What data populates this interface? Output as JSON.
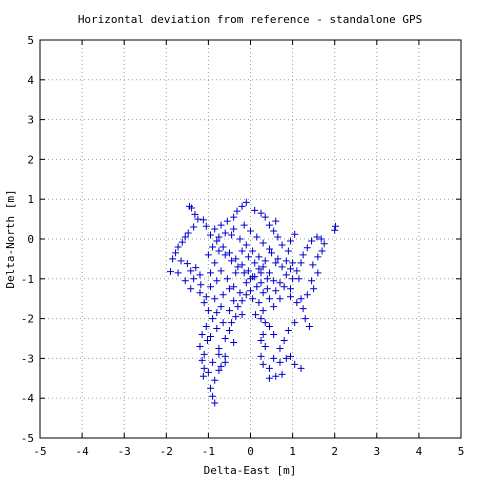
{
  "chart_data": {
    "type": "scatter",
    "title": "Horizontal deviation from reference - standalone GPS",
    "xlabel": "Delta-East [m]",
    "ylabel": "Delta-North [m]",
    "xlim": [
      -5,
      5
    ],
    "ylim": [
      -5,
      5
    ],
    "x_ticks": [
      "-5",
      "-4",
      "-3",
      "-2",
      "-1",
      "0",
      "1",
      "2",
      "3",
      "4",
      "5"
    ],
    "y_ticks": [
      "-5",
      "-4",
      "-3",
      "-2",
      "-1",
      "0",
      "1",
      "2",
      "3",
      "4",
      "5"
    ],
    "grid": true,
    "marker": "plus",
    "series": [
      {
        "color": "#0000cc",
        "points": [
          [
            -1.45,
            0.82
          ],
          [
            -1.4,
            0.78
          ],
          [
            -1.32,
            0.62
          ],
          [
            -1.25,
            0.5
          ],
          [
            -1.12,
            0.48
          ],
          [
            -1.05,
            0.32
          ],
          [
            -1.35,
            0.3
          ],
          [
            -1.48,
            0.15
          ],
          [
            -1.55,
            0.05
          ],
          [
            -1.62,
            -0.08
          ],
          [
            -1.72,
            -0.2
          ],
          [
            -1.78,
            -0.35
          ],
          [
            -1.85,
            -0.5
          ],
          [
            -1.65,
            -0.55
          ],
          [
            -1.5,
            -0.62
          ],
          [
            -1.42,
            -0.8
          ],
          [
            -1.3,
            -0.72
          ],
          [
            -1.2,
            -0.9
          ],
          [
            -1.72,
            -0.85
          ],
          [
            -1.9,
            -0.82
          ],
          [
            -1.55,
            -1.05
          ],
          [
            -1.35,
            -1.0
          ],
          [
            -1.18,
            -1.15
          ],
          [
            -1.42,
            -1.25
          ],
          [
            -1.2,
            -1.35
          ],
          [
            -1.05,
            -1.45
          ],
          [
            -0.95,
            -1.2
          ],
          [
            -1.1,
            -1.6
          ],
          [
            -1.0,
            -1.8
          ],
          [
            -0.9,
            -2.0
          ],
          [
            -1.05,
            -2.2
          ],
          [
            -1.15,
            -2.4
          ],
          [
            -1.02,
            -2.55
          ],
          [
            -1.2,
            -2.7
          ],
          [
            -1.1,
            -2.9
          ],
          [
            -1.15,
            -3.05
          ],
          [
            -1.1,
            -3.25
          ],
          [
            -1.12,
            -3.45
          ],
          [
            -1.0,
            -3.35
          ],
          [
            -0.9,
            -3.1
          ],
          [
            -0.85,
            -3.55
          ],
          [
            -0.95,
            -3.75
          ],
          [
            -0.9,
            -3.95
          ],
          [
            -0.85,
            -4.12
          ],
          [
            -0.75,
            -3.3
          ],
          [
            -0.7,
            -3.2
          ],
          [
            -0.6,
            -2.95
          ],
          [
            -0.75,
            -2.75
          ],
          [
            -0.6,
            -2.5
          ],
          [
            -0.5,
            -2.3
          ],
          [
            -0.65,
            -2.1
          ],
          [
            -0.8,
            -2.25
          ],
          [
            -0.45,
            -2.1
          ],
          [
            -0.35,
            -1.95
          ],
          [
            -0.5,
            -1.8
          ],
          [
            -0.7,
            -1.7
          ],
          [
            -0.3,
            -1.7
          ],
          [
            -0.2,
            -1.55
          ],
          [
            -0.1,
            -1.4
          ],
          [
            0.05,
            -1.5
          ],
          [
            0.2,
            -1.6
          ],
          [
            0.3,
            -1.8
          ],
          [
            0.12,
            -1.9
          ],
          [
            0.25,
            -2.0
          ],
          [
            0.35,
            -2.1
          ],
          [
            0.45,
            -2.2
          ],
          [
            0.55,
            -2.4
          ],
          [
            0.3,
            -2.4
          ],
          [
            0.25,
            -2.55
          ],
          [
            0.35,
            -2.7
          ],
          [
            0.25,
            -2.95
          ],
          [
            0.3,
            -3.15
          ],
          [
            0.45,
            -3.25
          ],
          [
            0.55,
            -3.0
          ],
          [
            0.7,
            -2.75
          ],
          [
            0.8,
            -2.55
          ],
          [
            0.7,
            -3.1
          ],
          [
            0.75,
            -3.4
          ],
          [
            0.6,
            -3.45
          ],
          [
            0.45,
            -3.5
          ],
          [
            0.85,
            -3.0
          ],
          [
            0.95,
            -2.95
          ],
          [
            1.05,
            -3.15
          ],
          [
            1.2,
            -3.25
          ],
          [
            0.9,
            -2.3
          ],
          [
            1.05,
            -2.1
          ],
          [
            1.3,
            -2.0
          ],
          [
            1.4,
            -2.2
          ],
          [
            1.25,
            -1.75
          ],
          [
            1.1,
            -1.6
          ],
          [
            0.95,
            -1.45
          ],
          [
            1.2,
            -1.5
          ],
          [
            1.35,
            -1.4
          ],
          [
            1.5,
            -1.25
          ],
          [
            1.45,
            -1.05
          ],
          [
            1.6,
            -0.85
          ],
          [
            1.48,
            -0.65
          ],
          [
            1.6,
            -0.45
          ],
          [
            1.7,
            -0.3
          ],
          [
            1.75,
            -0.12
          ],
          [
            1.68,
            0.0
          ],
          [
            1.58,
            0.05
          ],
          [
            1.45,
            -0.05
          ],
          [
            1.35,
            -0.22
          ],
          [
            1.25,
            -0.4
          ],
          [
            1.2,
            -0.6
          ],
          [
            1.1,
            -0.8
          ],
          [
            1.0,
            -1.0
          ],
          [
            0.95,
            -0.75
          ],
          [
            0.85,
            -0.55
          ],
          [
            0.9,
            -0.3
          ],
          [
            0.95,
            -0.05
          ],
          [
            1.05,
            0.12
          ],
          [
            0.75,
            -0.15
          ],
          [
            0.65,
            0.05
          ],
          [
            0.55,
            0.2
          ],
          [
            0.45,
            0.35
          ],
          [
            0.6,
            0.45
          ],
          [
            0.35,
            0.55
          ],
          [
            0.25,
            0.65
          ],
          [
            0.1,
            0.72
          ],
          [
            -0.1,
            0.92
          ],
          [
            -0.2,
            0.82
          ],
          [
            -0.32,
            0.7
          ],
          [
            -0.4,
            0.55
          ],
          [
            -0.55,
            0.45
          ],
          [
            -0.7,
            0.35
          ],
          [
            -0.85,
            0.25
          ],
          [
            -0.95,
            0.1
          ],
          [
            -0.8,
            -0.05
          ],
          [
            -0.65,
            -0.2
          ],
          [
            -0.5,
            -0.35
          ],
          [
            -0.35,
            -0.5
          ],
          [
            -0.2,
            -0.65
          ],
          [
            -0.05,
            -0.8
          ],
          [
            0.1,
            -0.95
          ],
          [
            0.25,
            -1.1
          ],
          [
            0.4,
            -1.25
          ],
          [
            0.55,
            -1.05
          ],
          [
            0.45,
            -0.85
          ],
          [
            0.3,
            -0.7
          ],
          [
            0.2,
            -0.45
          ],
          [
            0.05,
            -0.3
          ],
          [
            -0.1,
            -0.15
          ],
          [
            -0.25,
            0.0
          ],
          [
            -0.45,
            0.1
          ],
          [
            -0.6,
            0.15
          ],
          [
            -0.75,
            0.05
          ],
          [
            -0.9,
            -0.2
          ],
          [
            -1.0,
            -0.4
          ],
          [
            -0.85,
            -0.6
          ],
          [
            -0.7,
            -0.8
          ],
          [
            -0.55,
            -1.0
          ],
          [
            -0.4,
            -1.2
          ],
          [
            -0.25,
            -1.35
          ],
          [
            -0.1,
            -1.1
          ],
          [
            0.05,
            -0.95
          ],
          [
            0.2,
            -0.75
          ],
          [
            0.35,
            -0.55
          ],
          [
            0.5,
            -0.35
          ],
          [
            0.65,
            -0.5
          ],
          [
            0.75,
            -0.7
          ],
          [
            0.85,
            -0.9
          ],
          [
            0.7,
            -1.1
          ],
          [
            0.6,
            -1.3
          ],
          [
            0.45,
            -1.5
          ],
          [
            0.3,
            -1.35
          ],
          [
            0.15,
            -1.2
          ],
          [
            0.0,
            -1.0
          ],
          [
            -0.15,
            -0.85
          ],
          [
            -0.3,
            -0.7
          ],
          [
            -0.45,
            -0.55
          ],
          [
            -0.6,
            -0.4
          ],
          [
            -0.75,
            -0.3
          ],
          [
            -0.2,
            -0.3
          ],
          [
            -0.05,
            -0.45
          ],
          [
            0.1,
            -0.6
          ],
          [
            0.25,
            -0.85
          ],
          [
            0.4,
            -1.0
          ],
          [
            -0.35,
            -0.85
          ],
          [
            -0.5,
            -1.25
          ],
          [
            -0.65,
            -1.4
          ],
          [
            -0.8,
            -1.05
          ],
          [
            -0.95,
            -0.85
          ],
          [
            -0.4,
            0.25
          ],
          [
            -0.15,
            0.35
          ],
          [
            0.0,
            0.2
          ],
          [
            0.15,
            0.05
          ],
          [
            0.3,
            -0.1
          ],
          [
            0.45,
            -0.25
          ],
          [
            0.6,
            -0.6
          ],
          [
            0.8,
            -1.2
          ],
          [
            0.95,
            -1.25
          ],
          [
            0.7,
            -1.5
          ],
          [
            0.55,
            -1.7
          ],
          [
            -0.2,
            -1.9
          ],
          [
            -0.4,
            -1.55
          ],
          [
            -0.85,
            -1.5
          ],
          [
            -0.8,
            -1.85
          ],
          [
            -0.95,
            -2.45
          ],
          [
            -0.75,
            -2.9
          ],
          [
            -0.6,
            -3.1
          ],
          [
            -0.4,
            -2.6
          ],
          [
            0.0,
            -1.3
          ],
          [
            2.0,
            0.22
          ],
          [
            2.02,
            0.32
          ],
          [
            1.0,
            -0.6
          ],
          [
            1.15,
            -1.0
          ]
        ]
      }
    ]
  }
}
